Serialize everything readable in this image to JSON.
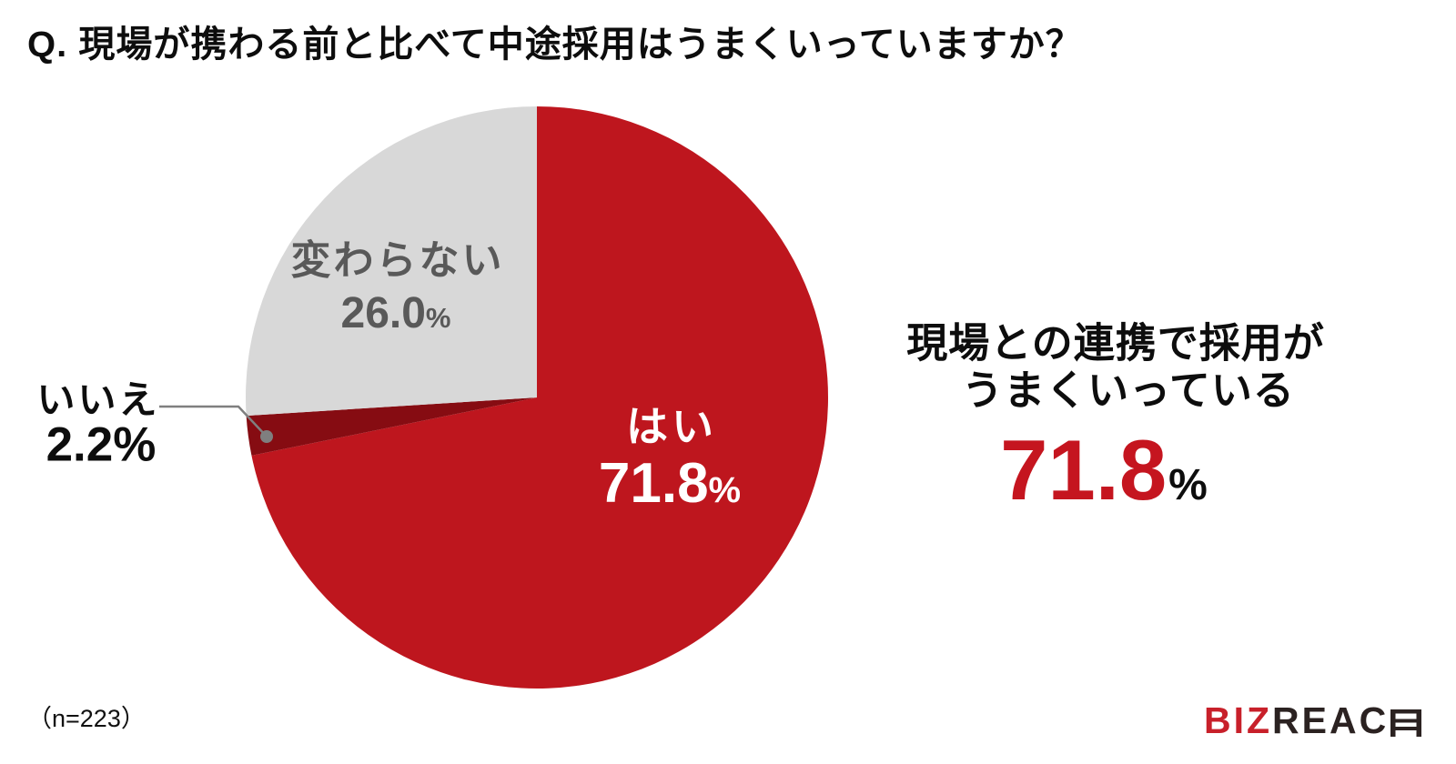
{
  "title": "Q. 現場が携わる前と比べて中途採用はうまくいっていますか？",
  "chart_data": {
    "type": "pie",
    "title": "Q. 現場が携わる前と比べて中途採用はうまくいっていますか？",
    "unit": "%",
    "start_angle": "top",
    "direction": "clockwise",
    "sample_note": "（n=223）",
    "slices": [
      {
        "key": "yes",
        "label": "はい",
        "value": 71.8,
        "display": "71.8",
        "color": "#BE161E",
        "label_color": "#FFFFFF"
      },
      {
        "key": "no",
        "label": "いいえ",
        "value": 2.2,
        "display": "2.2",
        "color": "#860C12",
        "label_color": "#0D0D0D"
      },
      {
        "key": "unchanged",
        "label": "変わらない",
        "value": 26.0,
        "display": "26.0",
        "color": "#D8D8D8",
        "label_color": "#595959"
      }
    ],
    "leader_line_color": "#7F7F7F"
  },
  "callout": {
    "line1": "現場との連携で採用が",
    "line2": "うまくいっている",
    "value": "71.8",
    "pct": "%",
    "value_color": "#C5151F"
  },
  "footnote": "（n=223）",
  "logo": {
    "prefix": "BIZ",
    "middle": "REAC",
    "prefix_color": "#C8202A",
    "text_color": "#2B2221"
  }
}
